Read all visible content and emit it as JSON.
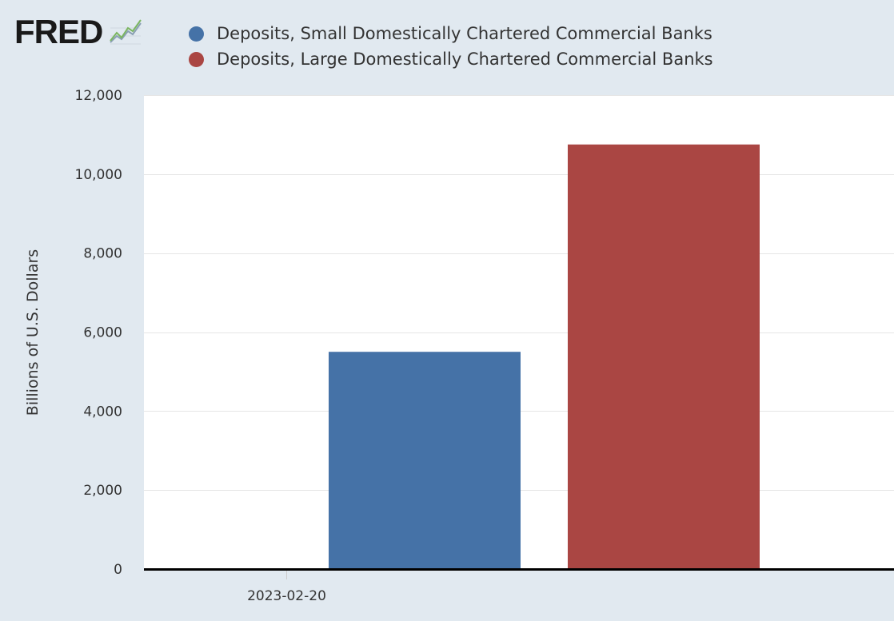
{
  "header": {
    "logo_text": "FRED",
    "logo_icon": "fred-line-graph-icon"
  },
  "colors": {
    "background": "#e1e9f0",
    "plot_background": "#ffffff",
    "gridline": "#e6e6e6",
    "small_banks": "#4572a7",
    "large_banks": "#aa4643"
  },
  "chart_data": {
    "type": "bar",
    "categories": [
      "2023-02-20"
    ],
    "series": [
      {
        "name": "Deposits, Small Domestically Chartered Commercial Banks",
        "values": [
          5500
        ],
        "color": "#4572a7"
      },
      {
        "name": "Deposits, Large Domestically Chartered Commercial Banks",
        "values": [
          10750
        ],
        "color": "#aa4643"
      }
    ],
    "ylabel": "Billions of U.S. Dollars",
    "ylim": [
      0,
      12000
    ],
    "yticks": [
      0,
      2000,
      4000,
      6000,
      8000,
      10000,
      12000
    ],
    "ytick_labels": [
      "0",
      "2,000",
      "4,000",
      "6,000",
      "8,000",
      "10,000",
      "12,000"
    ],
    "xtick_labels": [
      "2023-02-20"
    ],
    "grid": true,
    "legend_position": "top-left"
  }
}
